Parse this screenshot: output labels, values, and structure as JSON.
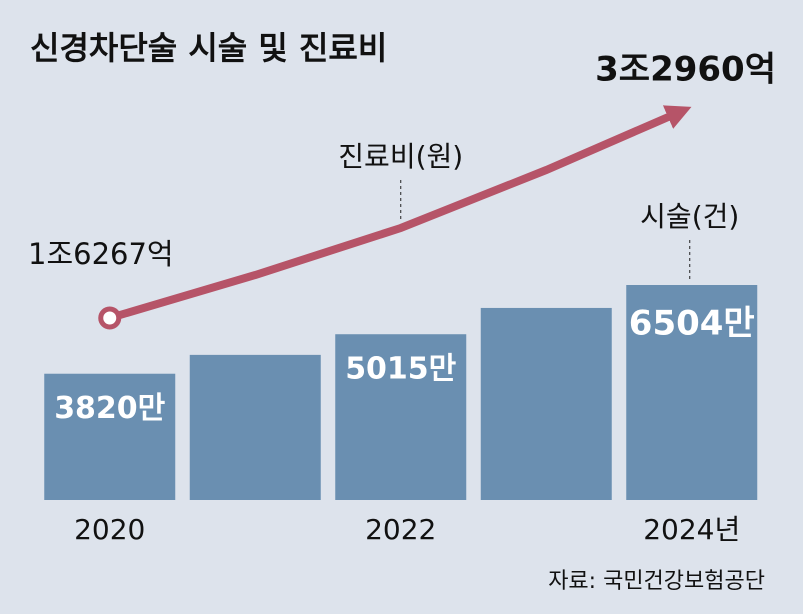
{
  "chart_data": {
    "type": "bar",
    "title": "신경차단술 시술 및 진료비",
    "source": "자료: 국민건강보험공단",
    "categories": [
      "2020",
      null,
      "2022",
      null,
      "2024년"
    ],
    "series": [
      {
        "name": "시술(건)",
        "type": "bar",
        "color": "#6a8fb1",
        "values": [
          3820,
          4390,
          5015,
          5810,
          6504
        ],
        "value_labels": [
          "3820만",
          null,
          "5015만",
          null,
          "6504만"
        ]
      },
      {
        "name": "진료비(원)",
        "type": "line",
        "color": "#b65468",
        "values": [
          16267,
          19750,
          23560,
          28260,
          32960
        ],
        "value_labels": [
          "1조6267억",
          null,
          null,
          null,
          "3조2960억"
        ]
      }
    ]
  }
}
